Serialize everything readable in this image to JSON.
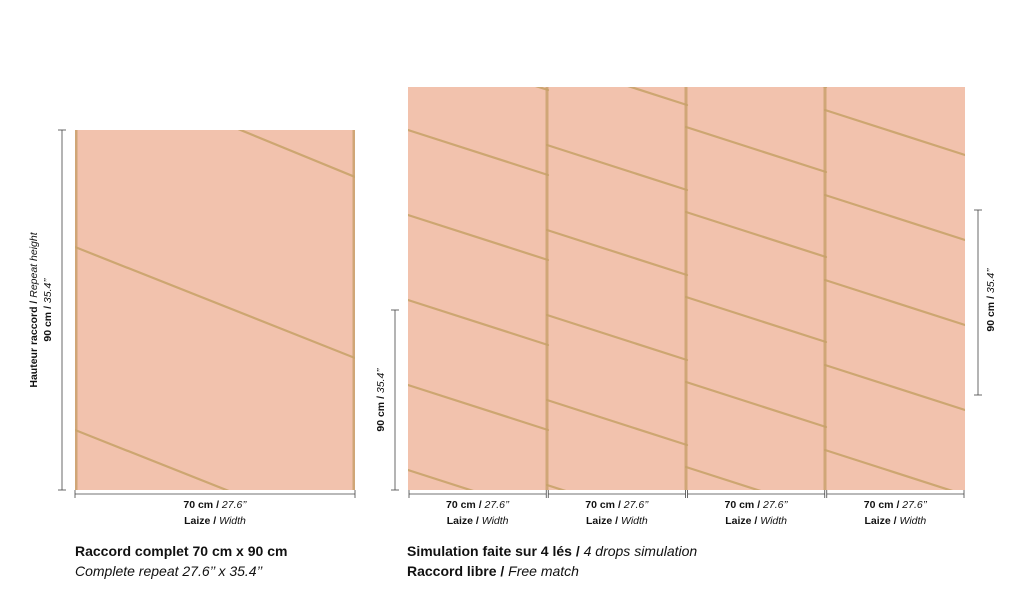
{
  "repeat_panel": {
    "height_label": {
      "bold": "Hauteur raccord /",
      "italic": "Repeat height"
    },
    "height_value": {
      "bold": "90 cm /",
      "italic": "35.4’’"
    },
    "width_value": {
      "bold": "70 cm /",
      "italic": "27.6’’"
    },
    "width_label": {
      "bold": "Laize /",
      "italic": "Width"
    }
  },
  "simulation_panel": {
    "height_left": {
      "bold": "90 cm /",
      "italic": "35.4’’"
    },
    "height_right": {
      "bold": "90 cm /",
      "italic": "35.4’’"
    },
    "drops": [
      {
        "width_value": {
          "bold": "70 cm /",
          "italic": "27.6’’"
        },
        "width_label": {
          "bold": "Laize /",
          "italic": "Width"
        }
      },
      {
        "width_value": {
          "bold": "70 cm /",
          "italic": "27.6’’"
        },
        "width_label": {
          "bold": "Laize /",
          "italic": "Width"
        }
      },
      {
        "width_value": {
          "bold": "70 cm /",
          "italic": "27.6’’"
        },
        "width_label": {
          "bold": "Laize /",
          "italic": "Width"
        }
      },
      {
        "width_value": {
          "bold": "70 cm /",
          "italic": "27.6’’"
        },
        "width_label": {
          "bold": "Laize /",
          "italic": "Width"
        }
      }
    ]
  },
  "captions": {
    "repeat": {
      "line1": "Raccord complet 70 cm x 90 cm",
      "line2": "Complete repeat 27.6’’ x 35.4’’"
    },
    "simulation": {
      "line1": {
        "bold": "Simulation faite sur 4 lés /",
        "italic": "4 drops simulation"
      },
      "line2": {
        "bold": "Raccord libre /",
        "italic": "Free match"
      }
    }
  }
}
